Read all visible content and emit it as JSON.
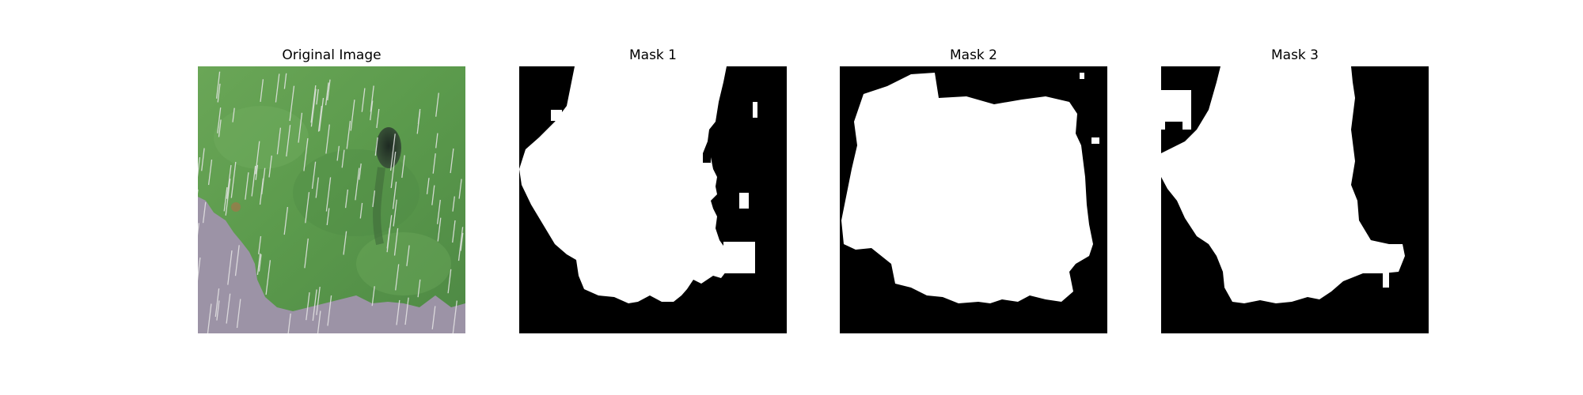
{
  "figure": {
    "panels": [
      {
        "title": "Original Image"
      },
      {
        "title": "Mask 1"
      },
      {
        "title": "Mask 2"
      },
      {
        "title": "Mask 3"
      }
    ]
  },
  "colors": {
    "background": "#ffffff",
    "mask_background": "#000000",
    "mask_foreground": "#ffffff",
    "leaf_green": "#5f9a4f",
    "leaf_dark": "#3f6d37",
    "ground_lavender": "#9c93a6",
    "spot_dark": "#27342a"
  }
}
